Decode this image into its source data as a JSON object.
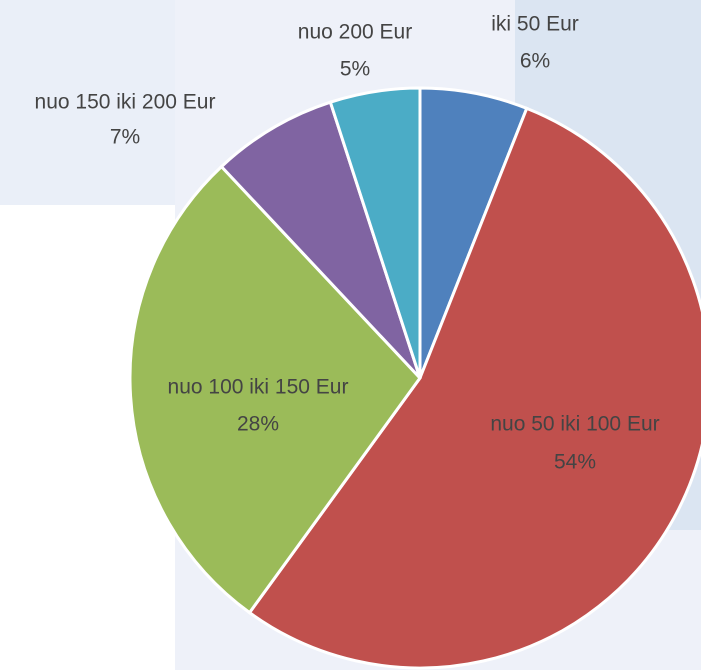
{
  "chart_data": {
    "type": "pie",
    "categories": [
      "iki 50 Eur",
      "nuo 50 iki 100 Eur",
      "nuo 100 iki 150 Eur",
      "nuo 150 iki 200 Eur",
      "nuo 200 Eur"
    ],
    "values": [
      6,
      54,
      28,
      7,
      5
    ],
    "value_labels": [
      "6%",
      "54%",
      "28%",
      "7%",
      "5%"
    ],
    "colors": [
      "#4f81bd",
      "#c0504d",
      "#9bbb59",
      "#8064a2",
      "#4bacc6"
    ]
  }
}
